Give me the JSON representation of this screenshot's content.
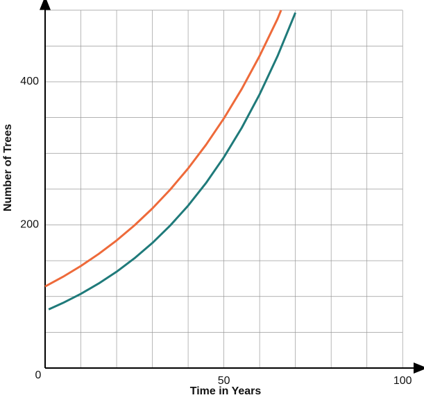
{
  "chart_data": {
    "type": "line",
    "xlabel": "Time in Years",
    "ylabel": "Number of Trees",
    "xlim": [
      0,
      105
    ],
    "ylim": [
      0,
      510
    ],
    "xticks": [
      0,
      50,
      100
    ],
    "yticks": [
      200,
      400
    ],
    "x_grid": [
      10,
      20,
      30,
      40,
      50,
      60,
      70,
      80,
      90,
      100
    ],
    "y_grid": [
      50,
      100,
      150,
      200,
      250,
      300,
      350,
      400,
      450,
      500
    ],
    "series": [
      {
        "color": "#ee6a3a",
        "x": [
          0,
          5,
          10,
          15,
          20,
          25,
          30,
          35,
          40,
          45,
          50,
          55,
          60,
          65,
          66
        ],
        "values": [
          114,
          127.5,
          142.6,
          159.5,
          178.3,
          199.4,
          223,
          249.4,
          278.9,
          311.9,
          348.8,
          390,
          436.2,
          487.8,
          500
        ]
      },
      {
        "color": "#1f7a7a",
        "x": [
          1,
          5,
          10,
          15,
          20,
          25,
          30,
          35,
          40,
          45,
          50,
          55,
          60,
          65,
          70
        ],
        "values": [
          82,
          91,
          103.7,
          118.2,
          134.6,
          153.4,
          174.8,
          199.2,
          226.9,
          258.5,
          294.6,
          335.7,
          382.5,
          435.8,
          496.5
        ]
      }
    ]
  }
}
